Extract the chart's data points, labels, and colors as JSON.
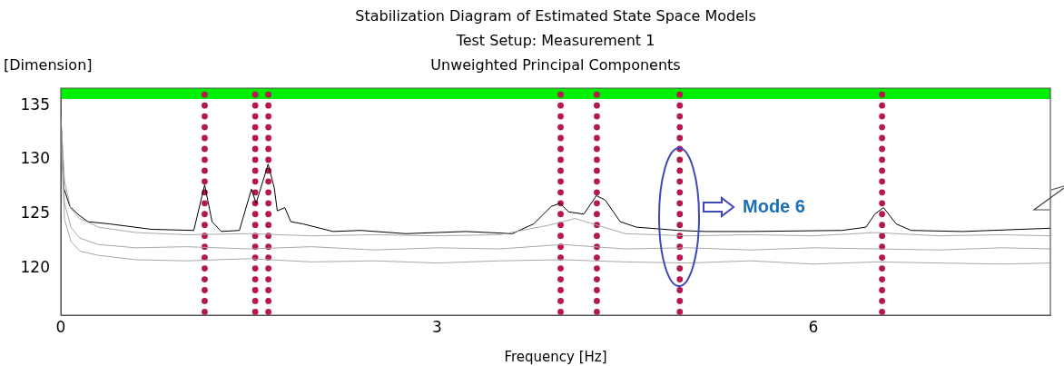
{
  "chart_data": {
    "type": "line",
    "title": "Stabilization Diagram of Estimated State Space Models",
    "subtitle": "Test Setup: Measurement 1\nUnweighted Principal Components",
    "xlabel": "Frequency [Hz]",
    "ylabel": "[Dimension]",
    "xlim": [
      0,
      7.89
    ],
    "xticks": [
      0,
      3,
      6
    ],
    "ylim": [
      115.7,
      136.6
    ],
    "yticks": [
      120,
      125,
      130,
      135
    ],
    "grid": false,
    "legend": false,
    "bands": [
      {
        "axis": "y",
        "from": 135.6,
        "to": 136.6,
        "color": "#00ee00"
      }
    ],
    "annotations": [
      "Mode 6"
    ],
    "series": [
      {
        "type": "line",
        "marker": "none",
        "color": "#a8a8a8",
        "x": [
          0,
          0.03,
          0.08,
          0.15,
          0.3,
          0.6,
          1.0,
          1.5,
          2.0,
          2.5,
          3.0,
          3.5,
          3.9,
          4.1,
          4.5,
          5.0,
          5.5,
          6.0,
          6.5,
          7.0,
          7.5,
          7.89
        ],
        "values": [
          134,
          128,
          125.5,
          124.6,
          123.8,
          123.3,
          123.1,
          123.2,
          123.0,
          123.1,
          123.0,
          123.1,
          124.0,
          124.6,
          123.2,
          123.0,
          123.1,
          123.0,
          123.3,
          123.0,
          123.1,
          123.0
        ]
      },
      {
        "type": "line",
        "marker": "none",
        "color": "#a8a8a8",
        "x": [
          0,
          0.03,
          0.08,
          0.15,
          0.3,
          0.6,
          1.0,
          1.5,
          2.0,
          2.5,
          3.0,
          3.5,
          4.0,
          4.5,
          5.0,
          5.5,
          6.0,
          6.5,
          7.0,
          7.5,
          7.89
        ],
        "values": [
          133,
          126,
          123.8,
          122.8,
          122.2,
          121.9,
          122.0,
          121.8,
          122.0,
          121.7,
          121.9,
          121.8,
          122.2,
          121.8,
          121.9,
          121.7,
          121.9,
          121.8,
          121.7,
          121.9,
          121.8
        ]
      },
      {
        "type": "line",
        "marker": "none",
        "color": "#a8a8a8",
        "x": [
          0,
          0.03,
          0.08,
          0.15,
          0.3,
          0.6,
          1.0,
          1.5,
          2.0,
          2.5,
          3.0,
          3.5,
          4.0,
          4.5,
          5.0,
          5.5,
          6.0,
          6.5,
          7.0,
          7.5,
          7.89
        ],
        "values": [
          132,
          124.5,
          122.5,
          121.6,
          121.2,
          120.8,
          120.7,
          120.9,
          120.6,
          120.7,
          120.5,
          120.7,
          120.8,
          120.6,
          120.5,
          120.7,
          120.4,
          120.6,
          120.5,
          120.4,
          120.5
        ]
      },
      {
        "marker": "none",
        "color": "#000000",
        "x": [
          0,
          0.024,
          0.072,
          0.145,
          0.217,
          0.386,
          0.724,
          1.06,
          1.147,
          1.206,
          1.279,
          1.424,
          1.52,
          1.557,
          1.653,
          1.702,
          1.726,
          1.786,
          1.834,
          1.93,
          2.17,
          2.39,
          2.75,
          3.23,
          3.6,
          3.77,
          3.91,
          3.98,
          4.05,
          4.17,
          4.27,
          4.34,
          4.46,
          4.59,
          4.92,
          5.14,
          5.5,
          6.23,
          6.42,
          6.49,
          6.56,
          6.66,
          6.78,
          7.19,
          7.89
        ],
        "values": [
          134.1,
          127.4,
          125.7,
          124.9,
          124.3,
          124.1,
          123.6,
          123.5,
          127.7,
          124.3,
          123.4,
          123.5,
          127.3,
          126,
          129.6,
          127.4,
          125.3,
          125.6,
          124.3,
          124.1,
          123.4,
          123.5,
          123.2,
          123.4,
          123.2,
          124.1,
          125.7,
          126,
          125.2,
          125,
          126.7,
          126.3,
          124.3,
          123.8,
          123.5,
          123.4,
          123.4,
          123.5,
          123.8,
          125,
          125.6,
          124.1,
          123.5,
          123.4,
          123.7
        ]
      },
      {
        "type": "scatter",
        "marker": "circle",
        "color": "#b5174f",
        "x": [
          1.147,
          1.147,
          1.147,
          1.147,
          1.147,
          1.147,
          1.147,
          1.147,
          1.147,
          1.147,
          1.147,
          1.147,
          1.147,
          1.147,
          1.147,
          1.147,
          1.147,
          1.147,
          1.147,
          1.147,
          1.147
        ],
        "values": [
          116,
          117,
          118,
          119,
          120,
          121,
          122,
          123,
          124,
          125,
          126,
          127,
          128,
          129,
          130,
          131,
          132,
          133,
          134,
          135,
          136
        ]
      },
      {
        "type": "scatter",
        "marker": "circle",
        "color": "#b5174f",
        "x": [
          1.55,
          1.55,
          1.55,
          1.55,
          1.55,
          1.55,
          1.55,
          1.55,
          1.55,
          1.55,
          1.55,
          1.55,
          1.55,
          1.55,
          1.55,
          1.55,
          1.55,
          1.55,
          1.55,
          1.55,
          1.55
        ],
        "values": [
          116,
          117,
          118,
          119,
          120,
          121,
          122,
          123,
          124,
          125,
          126,
          127,
          128,
          129,
          130,
          131,
          132,
          133,
          134,
          135,
          136
        ]
      },
      {
        "type": "scatter",
        "marker": "circle",
        "color": "#b5174f",
        "x": [
          1.655,
          1.655,
          1.655,
          1.655,
          1.655,
          1.655,
          1.655,
          1.655,
          1.655,
          1.655,
          1.655,
          1.655,
          1.655,
          1.655,
          1.655,
          1.655,
          1.655,
          1.655,
          1.655,
          1.655,
          1.655
        ],
        "values": [
          116,
          117,
          118,
          119,
          120,
          121,
          122,
          123,
          124,
          125,
          126,
          127,
          128,
          129,
          130,
          131,
          132,
          133,
          134,
          135,
          136
        ]
      },
      {
        "type": "scatter",
        "marker": "circle",
        "color": "#b5174f",
        "x": [
          3.985,
          3.985,
          3.985,
          3.985,
          3.985,
          3.985,
          3.985,
          3.985,
          3.985,
          3.985,
          3.985,
          3.985,
          3.985,
          3.985,
          3.985,
          3.985,
          3.985,
          3.985,
          3.985,
          3.985,
          3.985
        ],
        "values": [
          116,
          117,
          118,
          119,
          120,
          121,
          122,
          123,
          124,
          125,
          126,
          127,
          128,
          129,
          130,
          131,
          132,
          133,
          134,
          135,
          136
        ]
      },
      {
        "type": "scatter",
        "marker": "circle",
        "color": "#b5174f",
        "x": [
          4.274,
          4.274,
          4.274,
          4.274,
          4.274,
          4.274,
          4.274,
          4.274,
          4.274,
          4.274,
          4.274,
          4.274,
          4.274,
          4.274,
          4.274,
          4.274,
          4.274,
          4.274,
          4.274,
          4.274,
          4.274
        ],
        "values": [
          116,
          117,
          118,
          119,
          120,
          121,
          122,
          123,
          124,
          125,
          126,
          127,
          128,
          129,
          130,
          131,
          132,
          133,
          134,
          135,
          136
        ]
      },
      {
        "type": "scatter",
        "marker": "circle",
        "color": "#b5174f",
        "x": [
          4.935,
          4.935,
          4.935,
          4.935,
          4.935,
          4.935,
          4.935,
          4.935,
          4.935,
          4.935,
          4.935,
          4.935,
          4.935,
          4.935,
          4.935,
          4.935,
          4.935,
          4.935,
          4.935,
          4.935,
          4.935
        ],
        "values": [
          116,
          117,
          118,
          119,
          120,
          121,
          122,
          123,
          124,
          125,
          126,
          127,
          128,
          129,
          130,
          131,
          132,
          133,
          134,
          135,
          136
        ]
      },
      {
        "type": "scatter",
        "marker": "circle",
        "color": "#b5174f",
        "x": [
          6.548,
          6.548,
          6.548,
          6.548,
          6.548,
          6.548,
          6.548,
          6.548,
          6.548,
          6.548,
          6.548,
          6.548,
          6.548,
          6.548,
          6.548,
          6.548,
          6.548,
          6.548,
          6.548,
          6.548,
          6.548
        ],
        "values": [
          116,
          117,
          118,
          119,
          120,
          121,
          122,
          123,
          124,
          125,
          126,
          127,
          128,
          129,
          130,
          131,
          132,
          133,
          134,
          135,
          136
        ]
      }
    ]
  }
}
